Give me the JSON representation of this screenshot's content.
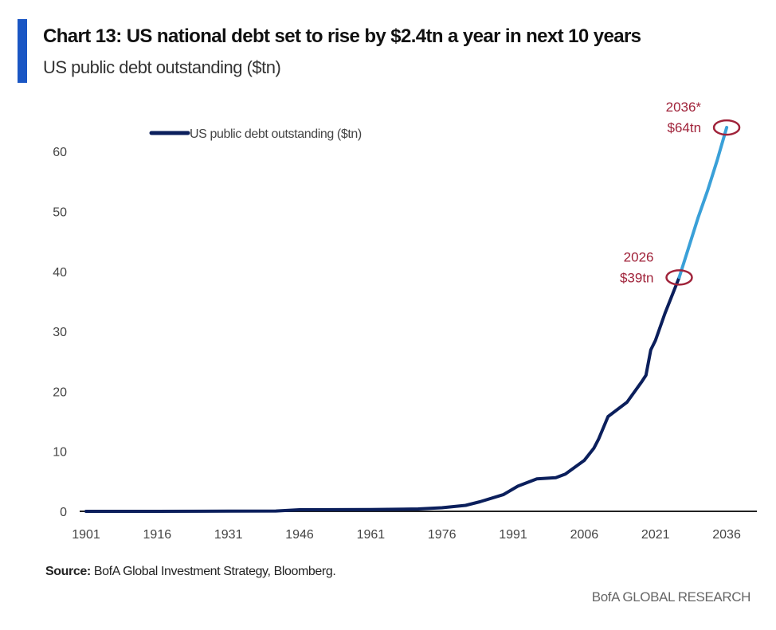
{
  "chart_data": {
    "type": "line",
    "title": "Chart 13: US national debt set to rise by $2.4tn a year in next 10 years",
    "subtitle": "US public debt outstanding ($tn)",
    "xlabel": "",
    "ylabel": "",
    "xlim": [
      1901,
      2040
    ],
    "ylim": [
      0,
      64
    ],
    "x_ticks": [
      "1901",
      "1916",
      "1931",
      "1946",
      "1961",
      "1976",
      "1991",
      "2006",
      "2021",
      "2036"
    ],
    "y_ticks": [
      "0",
      "10",
      "20",
      "30",
      "40",
      "50",
      "60"
    ],
    "grid": false,
    "legend": {
      "placement": "top-left",
      "entries": [
        "US public debt outstanding ($tn)"
      ]
    },
    "series": [
      {
        "name": "US public debt outstanding ($tn)",
        "color": "#0b1f5c",
        "points": [
          [
            1901,
            0.0
          ],
          [
            1916,
            0.0
          ],
          [
            1931,
            0.02
          ],
          [
            1941,
            0.05
          ],
          [
            1946,
            0.27
          ],
          [
            1961,
            0.29
          ],
          [
            1971,
            0.4
          ],
          [
            1976,
            0.6
          ],
          [
            1981,
            1.0
          ],
          [
            1984,
            1.6
          ],
          [
            1989,
            2.8
          ],
          [
            1992,
            4.2
          ],
          [
            1996,
            5.4
          ],
          [
            2000,
            5.6
          ],
          [
            2002,
            6.2
          ],
          [
            2006,
            8.5
          ],
          [
            2008,
            10.5
          ],
          [
            2009,
            12
          ],
          [
            2011,
            15.8
          ],
          [
            2015,
            18.2
          ],
          [
            2018,
            21.5
          ],
          [
            2019,
            22.7
          ],
          [
            2020,
            26.9
          ],
          [
            2021,
            28.5
          ],
          [
            2023,
            33
          ],
          [
            2026,
            39
          ]
        ]
      },
      {
        "name": "",
        "color": "#3aa0d8",
        "points": [
          [
            2026,
            39
          ],
          [
            2028,
            44
          ],
          [
            2030,
            49
          ],
          [
            2032,
            53.5
          ],
          [
            2034,
            58.5
          ],
          [
            2036,
            64
          ]
        ]
      }
    ],
    "annotations": [
      {
        "year": 2026,
        "value": 39,
        "lines": [
          "2026",
          "$39tn"
        ],
        "color": "#a0233a"
      },
      {
        "year": 2036,
        "value": 64,
        "lines": [
          "2036*",
          "$64tn"
        ],
        "color": "#a0233a"
      }
    ]
  },
  "source_label": "Source:",
  "source_text": " BofA Global Investment Strategy, Bloomberg.",
  "brand": "BofA GLOBAL RESEARCH",
  "colors": {
    "accent_bar": "#1a56c4",
    "history": "#0b1f5c",
    "projection": "#3aa0d8",
    "annotation": "#a0233a"
  }
}
